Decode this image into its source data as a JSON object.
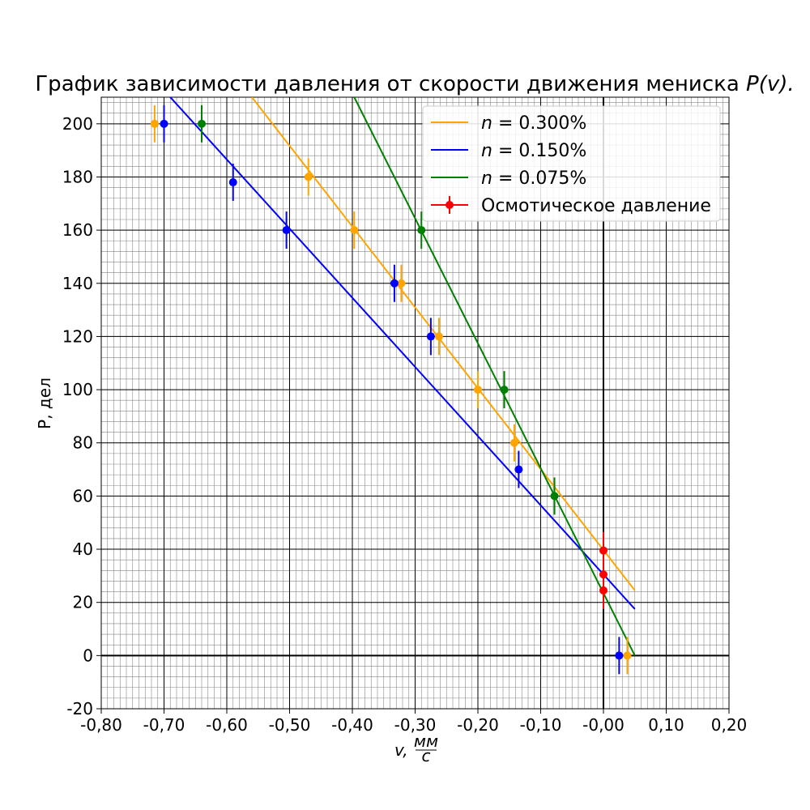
{
  "chart_data": {
    "type": "scatter",
    "title": "График зависимости давления от скорости движения мениска P(v).",
    "title_plain": "График зависимости давления от скорости движения мениска ",
    "title_math": "P(v).",
    "xlabel": "v, мм/с",
    "xlabel_var": "v, ",
    "xlabel_num": "мм",
    "xlabel_den": "с",
    "ylabel": "P, дел",
    "xlim": [
      -0.8,
      0.2
    ],
    "ylim": [
      -20,
      210
    ],
    "grid": "major and minor",
    "legend_position": "top-right",
    "x_ticks": [
      -0.8,
      -0.7,
      -0.6,
      -0.5,
      -0.4,
      -0.3,
      -0.2,
      -0.1,
      0.0,
      0.1,
      0.2
    ],
    "x_tick_labels": [
      "-0,80",
      "-0,70",
      "-0,60",
      "-0,50",
      "-0,40",
      "-0,30",
      "-0,20",
      "-0,10",
      "-0,00",
      "0,10",
      "0,20"
    ],
    "y_ticks": [
      -20,
      0,
      20,
      40,
      60,
      80,
      100,
      120,
      140,
      160,
      180,
      200
    ],
    "y_tick_labels": [
      "-20",
      "0",
      "20",
      "40",
      "60",
      "80",
      "100",
      "120",
      "140",
      "160",
      "180",
      "200"
    ],
    "y_error": 7,
    "series": [
      {
        "name": "n = 0.300%",
        "color": "#ffa500",
        "points": [
          [
            -0.715,
            200
          ],
          [
            -0.47,
            180
          ],
          [
            -0.397,
            160
          ],
          [
            -0.322,
            140
          ],
          [
            -0.262,
            120
          ],
          [
            -0.2,
            100
          ],
          [
            -0.142,
            80
          ],
          [
            0.038,
            0
          ]
        ],
        "fit_line": [
          [
            -0.56,
            210
          ],
          [
            0.05,
            24.5
          ]
        ]
      },
      {
        "name": "n = 0.150%",
        "color": "#0000ff",
        "points": [
          [
            -0.7,
            200
          ],
          [
            -0.59,
            178
          ],
          [
            -0.505,
            160
          ],
          [
            -0.333,
            140
          ],
          [
            -0.275,
            120
          ],
          [
            -0.135,
            70
          ],
          [
            0.025,
            0
          ]
        ],
        "fit_line": [
          [
            -0.69,
            210
          ],
          [
            0.05,
            17.5
          ]
        ]
      },
      {
        "name": "n = 0.075%",
        "color": "#008000",
        "points": [
          [
            -0.64,
            200
          ],
          [
            -0.29,
            160
          ],
          [
            -0.158,
            100
          ],
          [
            -0.078,
            60
          ]
        ],
        "fit_line": [
          [
            -0.397,
            210
          ],
          [
            0.05,
            0
          ]
        ]
      },
      {
        "name": "Осмотическое давление",
        "color": "#ff0000",
        "points": [
          [
            0.0,
            39.5
          ],
          [
            0.0,
            30.5
          ],
          [
            0.0,
            24.5
          ]
        ]
      }
    ],
    "legend": [
      {
        "label_prefix": "n",
        "label_value": " = 0.300%",
        "color": "#ffa500",
        "marker": "line"
      },
      {
        "label_prefix": "n",
        "label_value": " = 0.150%",
        "color": "#0000ff",
        "marker": "line"
      },
      {
        "label_prefix": "n",
        "label_value": " = 0.075%",
        "color": "#008000",
        "marker": "line"
      },
      {
        "label_prefix": "",
        "label_value": "Осмотическое давление",
        "color": "#ff0000",
        "marker": "errorbar-point"
      }
    ]
  }
}
